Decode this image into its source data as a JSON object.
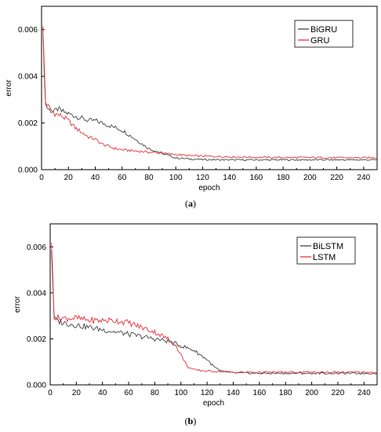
{
  "chart_data": [
    {
      "panel_label": "a",
      "type": "line",
      "xlabel": "epoch",
      "ylabel": "error",
      "xlim": [
        0,
        250
      ],
      "ylim": [
        0,
        0.007
      ],
      "x_ticks": [
        "0",
        "20",
        "40",
        "60",
        "80",
        "100",
        "120",
        "140",
        "160",
        "180",
        "200",
        "220",
        "240"
      ],
      "y_ticks": [
        "0.000",
        "0.002",
        "0.004",
        "0.006"
      ],
      "grid": false,
      "legend": "top-right",
      "series": [
        {
          "name": "BiGRU",
          "color": "#444444",
          "points": [
            [
              1,
              0.0059
            ],
            [
              2,
              0.0043
            ],
            [
              3,
              0.0028
            ],
            [
              5,
              0.0026
            ],
            [
              8,
              0.0025
            ],
            [
              10,
              0.0025
            ],
            [
              12,
              0.0026
            ],
            [
              15,
              0.0025
            ],
            [
              20,
              0.0024
            ],
            [
              25,
              0.0023
            ],
            [
              30,
              0.0022
            ],
            [
              35,
              0.0021
            ],
            [
              40,
              0.0021
            ],
            [
              45,
              0.002
            ],
            [
              50,
              0.0019
            ],
            [
              55,
              0.0018
            ],
            [
              60,
              0.0017
            ],
            [
              65,
              0.0015
            ],
            [
              70,
              0.0013
            ],
            [
              75,
              0.0011
            ],
            [
              80,
              0.0009
            ],
            [
              85,
              0.0008
            ],
            [
              90,
              0.0007
            ],
            [
              95,
              0.0006
            ],
            [
              100,
              0.0005
            ],
            [
              110,
              0.00046
            ],
            [
              120,
              0.00043
            ],
            [
              140,
              0.00042
            ],
            [
              160,
              0.00042
            ],
            [
              180,
              0.00042
            ],
            [
              200,
              0.00042
            ],
            [
              220,
              0.00042
            ],
            [
              250,
              0.00042
            ]
          ]
        },
        {
          "name": "GRU",
          "color": "#e8323c",
          "points": [
            [
              1,
              0.006
            ],
            [
              2,
              0.0045
            ],
            [
              3,
              0.0029
            ],
            [
              5,
              0.0027
            ],
            [
              8,
              0.0025
            ],
            [
              10,
              0.0024
            ],
            [
              15,
              0.0023
            ],
            [
              20,
              0.0021
            ],
            [
              25,
              0.0018
            ],
            [
              30,
              0.0016
            ],
            [
              35,
              0.0014
            ],
            [
              40,
              0.0013
            ],
            [
              45,
              0.0011
            ],
            [
              50,
              0.001
            ],
            [
              55,
              0.0009
            ],
            [
              60,
              0.00085
            ],
            [
              70,
              0.0008
            ],
            [
              80,
              0.00075
            ],
            [
              90,
              0.0007
            ],
            [
              100,
              0.00065
            ],
            [
              110,
              0.0006
            ],
            [
              120,
              0.00058
            ],
            [
              140,
              0.00055
            ],
            [
              160,
              0.00053
            ],
            [
              180,
              0.00052
            ],
            [
              200,
              0.00052
            ],
            [
              220,
              0.00051
            ],
            [
              250,
              0.00051
            ]
          ]
        }
      ]
    },
    {
      "panel_label": "b",
      "type": "line",
      "xlabel": "epoch",
      "ylabel": "error",
      "xlim": [
        0,
        250
      ],
      "ylim": [
        0,
        0.007
      ],
      "x_ticks": [
        "0",
        "20",
        "40",
        "60",
        "80",
        "100",
        "120",
        "140",
        "160",
        "180",
        "200",
        "220",
        "240"
      ],
      "y_ticks": [
        "0.000",
        "0.002",
        "0.004",
        "0.006"
      ],
      "grid": false,
      "legend": "top-right",
      "series": [
        {
          "name": "BiLSTM",
          "color": "#444444",
          "points": [
            [
              1,
              0.0059
            ],
            [
              2,
              0.0045
            ],
            [
              3,
              0.0029
            ],
            [
              5,
              0.0028
            ],
            [
              10,
              0.0027
            ],
            [
              20,
              0.0026
            ],
            [
              30,
              0.0025
            ],
            [
              40,
              0.0024
            ],
            [
              50,
              0.0023
            ],
            [
              60,
              0.0022
            ],
            [
              70,
              0.0021
            ],
            [
              80,
              0.002
            ],
            [
              90,
              0.0019
            ],
            [
              100,
              0.0017
            ],
            [
              105,
              0.0016
            ],
            [
              110,
              0.0015
            ],
            [
              115,
              0.0013
            ],
            [
              120,
              0.0011
            ],
            [
              125,
              0.0008
            ],
            [
              130,
              0.0006
            ],
            [
              140,
              0.00052
            ],
            [
              160,
              0.0005
            ],
            [
              180,
              0.0005
            ],
            [
              200,
              0.0005
            ],
            [
              220,
              0.0005
            ],
            [
              250,
              0.0005
            ]
          ]
        },
        {
          "name": "LSTM",
          "color": "#e8323c",
          "points": [
            [
              1,
              0.006
            ],
            [
              2,
              0.0048
            ],
            [
              3,
              0.003
            ],
            [
              5,
              0.0029
            ],
            [
              10,
              0.0029
            ],
            [
              20,
              0.0029
            ],
            [
              30,
              0.0028
            ],
            [
              40,
              0.0028
            ],
            [
              50,
              0.0028
            ],
            [
              60,
              0.0027
            ],
            [
              70,
              0.0025
            ],
            [
              80,
              0.0023
            ],
            [
              90,
              0.002
            ],
            [
              95,
              0.0018
            ],
            [
              100,
              0.0013
            ],
            [
              105,
              0.0008
            ],
            [
              110,
              0.00065
            ],
            [
              120,
              0.0006
            ],
            [
              130,
              0.00058
            ],
            [
              140,
              0.00055
            ],
            [
              160,
              0.00055
            ],
            [
              180,
              0.00055
            ],
            [
              200,
              0.00055
            ],
            [
              220,
              0.00055
            ],
            [
              250,
              0.00055
            ]
          ]
        }
      ]
    }
  ]
}
